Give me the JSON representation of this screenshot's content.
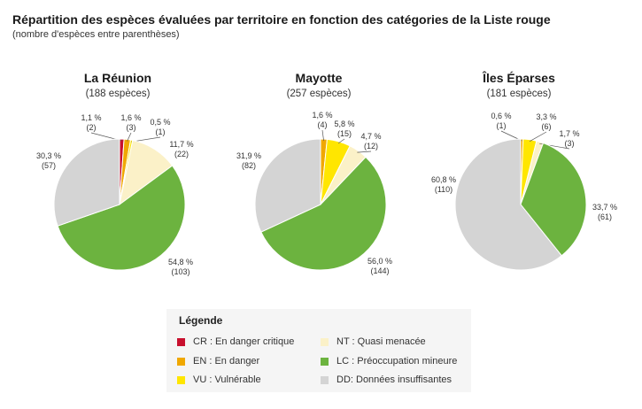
{
  "title": "Répartition des espèces évaluées par territoire en fonction des catégories de la Liste rouge",
  "subtitle": "(nombre d'espèces entre parenthèses)",
  "legend": {
    "title": "Légende",
    "items": [
      {
        "code": "CR",
        "label": "CR : En danger critique",
        "color": "#c8102e"
      },
      {
        "code": "EN",
        "label": "EN : En danger",
        "color": "#f0a800"
      },
      {
        "code": "VU",
        "label": "VU : Vulnérable",
        "color": "#ffe600"
      },
      {
        "code": "NT",
        "label": "NT : Quasi menacée",
        "color": "#fbf1c8"
      },
      {
        "code": "LC",
        "label": "LC : Préoccupation mineure",
        "color": "#6cb33f"
      },
      {
        "code": "DD",
        "label": "DD: Données insuffisantes",
        "color": "#d4d4d4"
      }
    ]
  },
  "chart_data": [
    {
      "type": "pie",
      "title": "La Réunion",
      "subtitle": "(188 espèces)",
      "slices": [
        {
          "category": "CR",
          "percent": "1,1 %",
          "value": 1.1,
          "count": 2
        },
        {
          "category": "EN",
          "percent": "1,6 %",
          "value": 1.6,
          "count": 3
        },
        {
          "category": "VU",
          "percent": "0,5 %",
          "value": 0.5,
          "count": 1
        },
        {
          "category": "NT",
          "percent": "11,7 %",
          "value": 11.7,
          "count": 22
        },
        {
          "category": "LC",
          "percent": "54,8 %",
          "value": 54.8,
          "count": 103
        },
        {
          "category": "DD",
          "percent": "30,3 %",
          "value": 30.3,
          "count": 57
        }
      ]
    },
    {
      "type": "pie",
      "title": "Mayotte",
      "subtitle": "(257 espèces)",
      "slices": [
        {
          "category": "EN",
          "percent": "1,6 %",
          "value": 1.6,
          "count": 4
        },
        {
          "category": "VU",
          "percent": "5,8 %",
          "value": 5.8,
          "count": 15
        },
        {
          "category": "NT",
          "percent": "4,7 %",
          "value": 4.7,
          "count": 12
        },
        {
          "category": "LC",
          "percent": "56,0 %",
          "value": 56.0,
          "count": 144
        },
        {
          "category": "DD",
          "percent": "31,9 %",
          "value": 31.9,
          "count": 82
        }
      ]
    },
    {
      "type": "pie",
      "title": "Îles Éparses",
      "subtitle": "(181 espèces)",
      "slices": [
        {
          "category": "EN",
          "percent": "0,6 %",
          "value": 0.6,
          "count": 1
        },
        {
          "category": "VU",
          "percent": "3,3 %",
          "value": 3.3,
          "count": 6
        },
        {
          "category": "NT",
          "percent": "1,7 %",
          "value": 1.7,
          "count": 3
        },
        {
          "category": "LC",
          "percent": "33,7 %",
          "value": 33.7,
          "count": 61
        },
        {
          "category": "DD",
          "percent": "60,8 %",
          "value": 60.8,
          "count": 110
        }
      ]
    }
  ]
}
